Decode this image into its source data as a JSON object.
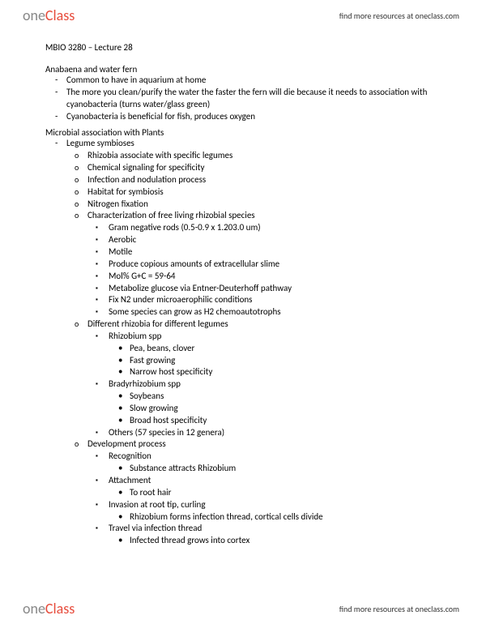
{
  "brand": {
    "part1": "one",
    "part2": "Class"
  },
  "header_link": "find more resources at oneclass.com",
  "footer_link": "find more resources at oneclass.com",
  "title": "MBIO 3280 – Lecture 28",
  "section1": {
    "heading": "Anabaena and water fern",
    "items": [
      "Common to have in aquarium at home",
      "The more you clean/purify the water the faster the fern will die because it needs to association with cyanobacteria (turns water/glass green)",
      "Cyanobacteria is beneficial for fish, produces oxygen"
    ]
  },
  "section2": {
    "heading": "Microbial association with Plants",
    "item": "Legume symbioses",
    "subs": [
      "Rhizobia associate with specific legumes",
      "Chemical signaling for specificity",
      "Infection and nodulation process",
      "Habitat for symbiosis",
      "Nitrogen fixation"
    ],
    "charHead": "Characterization of free living rhizobial species",
    "charItems": [
      "Gram negative rods (0.5-0.9 x 1.203.0 um)",
      "Aerobic",
      "Motile",
      "Produce copious amounts of extracellular slime",
      "Mol% G+C = 59-64",
      "Metabolize glucose via Entner-Deuterhoff pathway",
      "Fix N2 under microaerophilic conditions",
      "Some species can grow as H2 chemoautotrophs"
    ],
    "diffHead": "Different rhizobia for different legumes",
    "rhiz": {
      "name": "Rhizobium spp",
      "pts": [
        "Pea, beans, clover",
        "Fast growing",
        "Narrow host specificity"
      ]
    },
    "brady": {
      "name": "Bradyrhizobium spp",
      "pts": [
        "Soybeans",
        "Slow growing",
        "Broad host specificity"
      ]
    },
    "others": "Others (57 species in 12 genera)",
    "devHead": "Development process",
    "dev": {
      "rec": {
        "name": "Recognition",
        "pt": "Substance attracts Rhizobium"
      },
      "att": {
        "name": "Attachment",
        "pt": "To root hair"
      },
      "inv": {
        "name": "Invasion at root tip, curling",
        "pt": "Rhizobium forms infection thread, cortical cells divide"
      },
      "trav": {
        "name": "Travel via infection thread",
        "pt": "Infected thread grows into cortex"
      }
    }
  }
}
